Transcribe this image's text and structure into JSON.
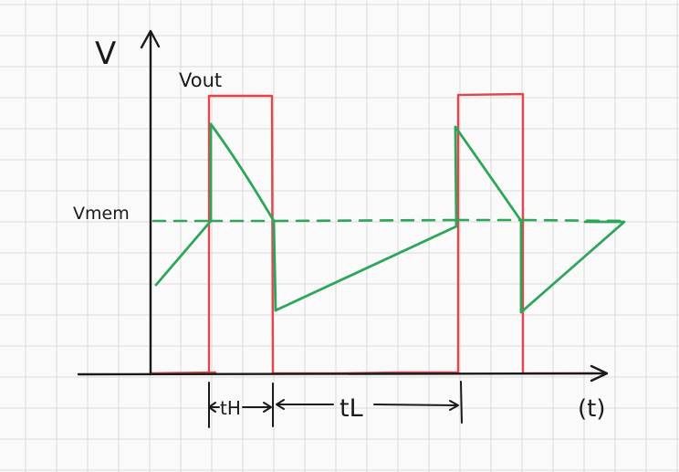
{
  "labels": {
    "y_axis": "V",
    "x_axis": "(t)",
    "vout": "Vout",
    "vmem": "Vmem",
    "t_high": "tH",
    "t_low": "tL"
  },
  "colors": {
    "paper": "#fafafa",
    "grid": "#d9d9d9",
    "axes": "#1a1a1a",
    "vout": "#e0474c",
    "vmem": "#2ea65a"
  }
}
